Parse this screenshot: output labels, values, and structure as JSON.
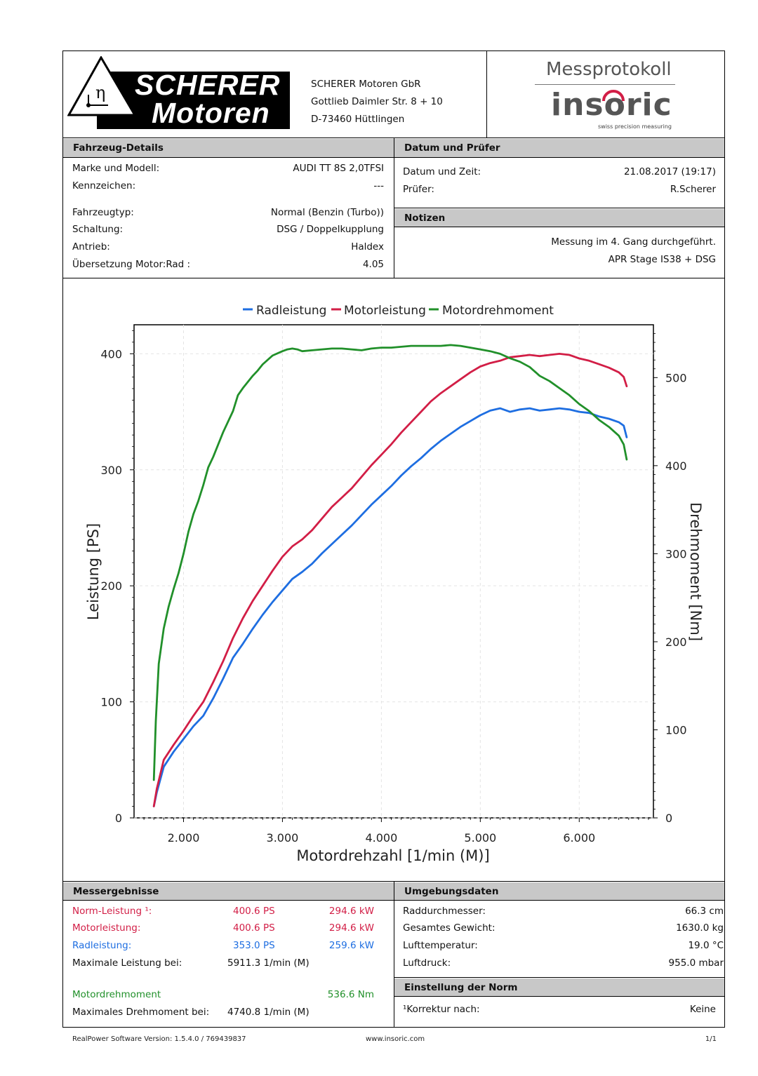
{
  "company": {
    "logo_word1": "SCHERER",
    "logo_word2": "Motoren",
    "logo_symbol": "η",
    "address_lines": [
      "SCHERER Motoren GbR",
      "Gottlieb Daimler Str. 8 + 10",
      "D-73460 Hüttlingen"
    ]
  },
  "brand": {
    "title": "Messprotokoll",
    "logo_text": "insoric",
    "tagline": "swiss precision measuring"
  },
  "vehicle": {
    "header": "Fahrzeug-Details",
    "rows": [
      {
        "label": "Marke und Modell:",
        "value": "AUDI TT 8S 2,0TFSI"
      },
      {
        "label": "Kennzeichen:",
        "value": "---"
      },
      {
        "label": "Fahrzeugtyp:",
        "value": "Normal (Benzin (Turbo))"
      },
      {
        "label": "Schaltung:",
        "value": "DSG / Doppelkupplung"
      },
      {
        "label": "Antrieb:",
        "value": "Haldex"
      },
      {
        "label": "Übersetzung Motor:Rad :",
        "value": "4.05"
      }
    ]
  },
  "date": {
    "header": "Datum und Prüfer",
    "rows": [
      {
        "label": "Datum und Zeit:",
        "value": "21.08.2017 (19:17)"
      },
      {
        "label": "Prüfer:",
        "value": "R.Scherer"
      }
    ]
  },
  "notes": {
    "header": "Notizen",
    "lines": [
      "Messung im 4. Gang durchgeführt.",
      "APR Stage IS38 + DSG"
    ]
  },
  "chart_data": {
    "type": "line",
    "xlabel": "Motordrehzahl [1/min (M)]",
    "ylabel": "Leistung [PS]",
    "y2label": "Drehmoment [Nm]",
    "xlim": [
      1500,
      6750
    ],
    "ylim": [
      0,
      425
    ],
    "y2lim": [
      0,
      560
    ],
    "x_ticks": [
      2000,
      3000,
      4000,
      5000,
      6000
    ],
    "x_tick_labels": [
      "2.000",
      "3.000",
      "4.000",
      "5.000",
      "6.000"
    ],
    "y_ticks": [
      0,
      100,
      200,
      300,
      400
    ],
    "y_tick_labels": [
      "0",
      "100",
      "200",
      "300",
      "400"
    ],
    "y2_ticks": [
      0,
      100,
      200,
      300,
      400,
      500
    ],
    "y2_tick_labels": [
      "0",
      "100",
      "200",
      "300",
      "400",
      "500"
    ],
    "grid": true,
    "legend": "top",
    "series": [
      {
        "name": "Radleistung",
        "axis": "left",
        "color": "#1e6ee1",
        "x": [
          1700,
          1730,
          1800,
          1900,
          2000,
          2100,
          2200,
          2300,
          2400,
          2500,
          2600,
          2700,
          2800,
          2900,
          3000,
          3100,
          3200,
          3300,
          3400,
          3500,
          3600,
          3700,
          3800,
          3900,
          4000,
          4100,
          4200,
          4300,
          4400,
          4500,
          4600,
          4700,
          4800,
          4900,
          5000,
          5100,
          5200,
          5300,
          5400,
          5500,
          5600,
          5700,
          5800,
          5900,
          6000,
          6100,
          6200,
          6300,
          6400,
          6450,
          6480
        ],
        "y": [
          10,
          22,
          44,
          57,
          68,
          79,
          88,
          103,
          120,
          138,
          150,
          163,
          175,
          186,
          196,
          206,
          212,
          219,
          228,
          236,
          244,
          252,
          261,
          270,
          278,
          286,
          295,
          303,
          310,
          318,
          325,
          331,
          337,
          342,
          347,
          351,
          353,
          350,
          352,
          353,
          351,
          352,
          353,
          352,
          350,
          349,
          346,
          344,
          341,
          338,
          328
        ]
      },
      {
        "name": "Motorleistung",
        "axis": "left",
        "color": "#d21e46",
        "x": [
          1700,
          1730,
          1800,
          1900,
          2000,
          2100,
          2200,
          2300,
          2400,
          2500,
          2600,
          2700,
          2800,
          2900,
          3000,
          3100,
          3200,
          3300,
          3400,
          3500,
          3600,
          3700,
          3800,
          3900,
          4000,
          4100,
          4200,
          4300,
          4400,
          4500,
          4600,
          4700,
          4800,
          4900,
          5000,
          5100,
          5200,
          5300,
          5400,
          5500,
          5600,
          5700,
          5800,
          5900,
          6000,
          6100,
          6200,
          6300,
          6400,
          6450,
          6480
        ],
        "y": [
          10,
          25,
          50,
          63,
          75,
          88,
          100,
          117,
          135,
          155,
          172,
          187,
          200,
          213,
          225,
          234,
          240,
          248,
          258,
          268,
          276,
          284,
          294,
          304,
          313,
          322,
          332,
          341,
          350,
          359,
          366,
          372,
          378,
          384,
          389,
          392,
          394,
          397,
          398,
          399,
          398,
          399,
          400,
          399,
          396,
          394,
          391,
          388,
          384,
          380,
          372
        ]
      },
      {
        "name": "Motordrehmoment",
        "axis": "right",
        "color": "#21902a",
        "x": [
          1700,
          1720,
          1750,
          1800,
          1850,
          1900,
          1950,
          2000,
          2050,
          2100,
          2150,
          2200,
          2250,
          2300,
          2400,
          2500,
          2550,
          2600,
          2700,
          2750,
          2800,
          2900,
          3000,
          3050,
          3100,
          3150,
          3200,
          3300,
          3400,
          3500,
          3600,
          3700,
          3800,
          3900,
          4000,
          4100,
          4200,
          4300,
          4400,
          4500,
          4600,
          4700,
          4800,
          4900,
          5000,
          5100,
          5200,
          5300,
          5400,
          5500,
          5600,
          5700,
          5800,
          5900,
          6000,
          6100,
          6200,
          6300,
          6400,
          6450,
          6480
        ],
        "y": [
          43,
          110,
          175,
          215,
          240,
          260,
          278,
          300,
          325,
          345,
          360,
          378,
          398,
          410,
          438,
          462,
          480,
          488,
          502,
          508,
          515,
          525,
          530,
          532,
          533,
          532,
          530,
          531,
          532,
          533,
          533,
          532,
          531,
          533,
          534,
          534,
          535,
          536,
          536,
          536,
          536,
          537,
          536,
          534,
          532,
          530,
          527,
          522,
          518,
          512,
          502,
          496,
          488,
          480,
          470,
          462,
          452,
          444,
          434,
          424,
          407
        ]
      }
    ]
  },
  "results": {
    "header": "Messergebnisse",
    "norm": {
      "label": "Norm-Leistung ¹:",
      "ps": "400.6 PS",
      "kw": "294.6 kW"
    },
    "motor": {
      "label": "Motorleistung:",
      "ps": "400.6 PS",
      "kw": "294.6 kW"
    },
    "rad": {
      "label": "Radleistung:",
      "ps": "353.0 PS",
      "kw": "259.6 kW"
    },
    "max_power": {
      "label": "Maximale Leistung bei:",
      "value": "5911.3 1/min (M)"
    },
    "torque": {
      "label": "Motordrehmoment",
      "value": "536.6 Nm"
    },
    "max_torque": {
      "label": "Maximales Drehmoment bei:",
      "value": "4740.8 1/min (M)"
    }
  },
  "environment": {
    "header": "Umgebungsdaten",
    "rows": [
      {
        "label": "Raddurchmesser:",
        "value": "66.3 cm"
      },
      {
        "label": "Gesamtes Gewicht:",
        "value": "1630.0 kg"
      },
      {
        "label": "Lufttemperatur:",
        "value": "19.0 °C"
      },
      {
        "label": "Luftdruck:",
        "value": "955.0 mbar"
      }
    ]
  },
  "norm": {
    "header": "Einstellung der Norm",
    "label": "¹Korrektur nach:",
    "value": "Keine"
  },
  "footer": {
    "version": "RealPower Software Version: 1.5.4.0 / 769439837",
    "website": "www.insoric.com",
    "page": "1/1"
  },
  "colors": {
    "motor": "#d21e46",
    "rad": "#1e6ee1",
    "torque": "#21902a"
  }
}
